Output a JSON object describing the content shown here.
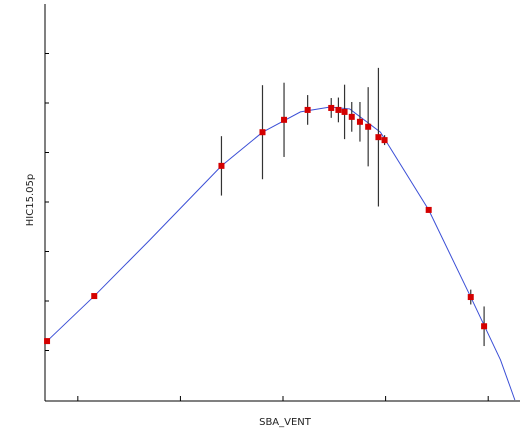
{
  "chart_data": {
    "type": "scatter",
    "x_label": "SBA_VENT",
    "y_label": "HIC15.05p",
    "xlim": [
      0.68,
      5.31
    ],
    "xticks": [
      1,
      2,
      3,
      4,
      5
    ],
    "ylim": [
      0,
      8
    ],
    "yticks": [
      1,
      2,
      3,
      4,
      5,
      6,
      7
    ],
    "series": [
      {
        "style": "line",
        "color": "#3b4fd6",
        "x": [
          0.68,
          1.16,
          1.7,
          2.4,
          2.8,
          3.17,
          3.46,
          3.65,
          3.95,
          4.42,
          4.83,
          5.12,
          5.26
        ],
        "values": [
          1.15,
          2.1,
          3.23,
          4.73,
          5.41,
          5.82,
          5.92,
          5.88,
          5.41,
          3.84,
          2.08,
          0.81,
          0
        ]
      },
      {
        "style": "points",
        "color": "#d40000",
        "error_color": "#333333",
        "x": [
          0.7,
          1.16,
          2.4,
          2.8,
          3.01,
          3.24,
          3.47,
          3.54,
          3.6,
          3.67,
          3.75,
          3.83,
          3.93,
          3.99,
          4.42,
          4.83,
          4.96
        ],
        "values": [
          1.19,
          2.1,
          4.73,
          5.41,
          5.66,
          5.86,
          5.9,
          5.86,
          5.82,
          5.72,
          5.62,
          5.52,
          5.31,
          5.25,
          3.84,
          2.08,
          1.49
        ],
        "errors": [
          0,
          0,
          0.6,
          0.95,
          0.75,
          0.3,
          0.2,
          0.25,
          0.55,
          0.3,
          0.4,
          0.8,
          1.4,
          0.1,
          0,
          0.15,
          0.4
        ]
      }
    ]
  }
}
